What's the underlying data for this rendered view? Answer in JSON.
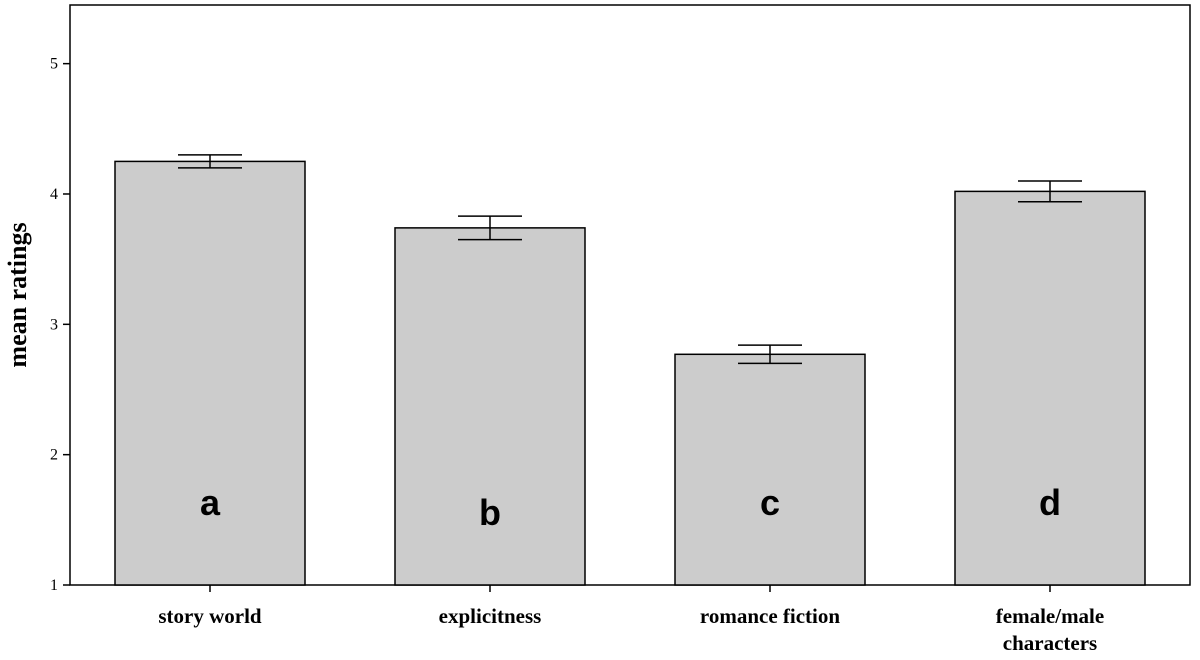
{
  "chart_data": {
    "type": "bar",
    "title": "",
    "xlabel": "",
    "ylabel": "mean ratings",
    "ylim": [
      1,
      5.45
    ],
    "yticks": [
      1,
      2,
      3,
      4,
      5
    ],
    "grid": false,
    "categories": [
      "story world",
      "explicitness",
      "romance fiction",
      "female/male characters"
    ],
    "category_label_lines": [
      [
        "story world"
      ],
      [
        "explicitness"
      ],
      [
        "romance fiction"
      ],
      [
        "female/male",
        "characters"
      ]
    ],
    "values": [
      4.25,
      3.74,
      2.77,
      4.02
    ],
    "error_low": [
      4.2,
      3.65,
      2.7,
      3.94
    ],
    "error_high": [
      4.3,
      3.83,
      2.84,
      4.1
    ],
    "bar_letters": [
      "a",
      "b",
      "c",
      "d"
    ],
    "bar_color": "#cccccc",
    "edge_color": "#000000"
  }
}
